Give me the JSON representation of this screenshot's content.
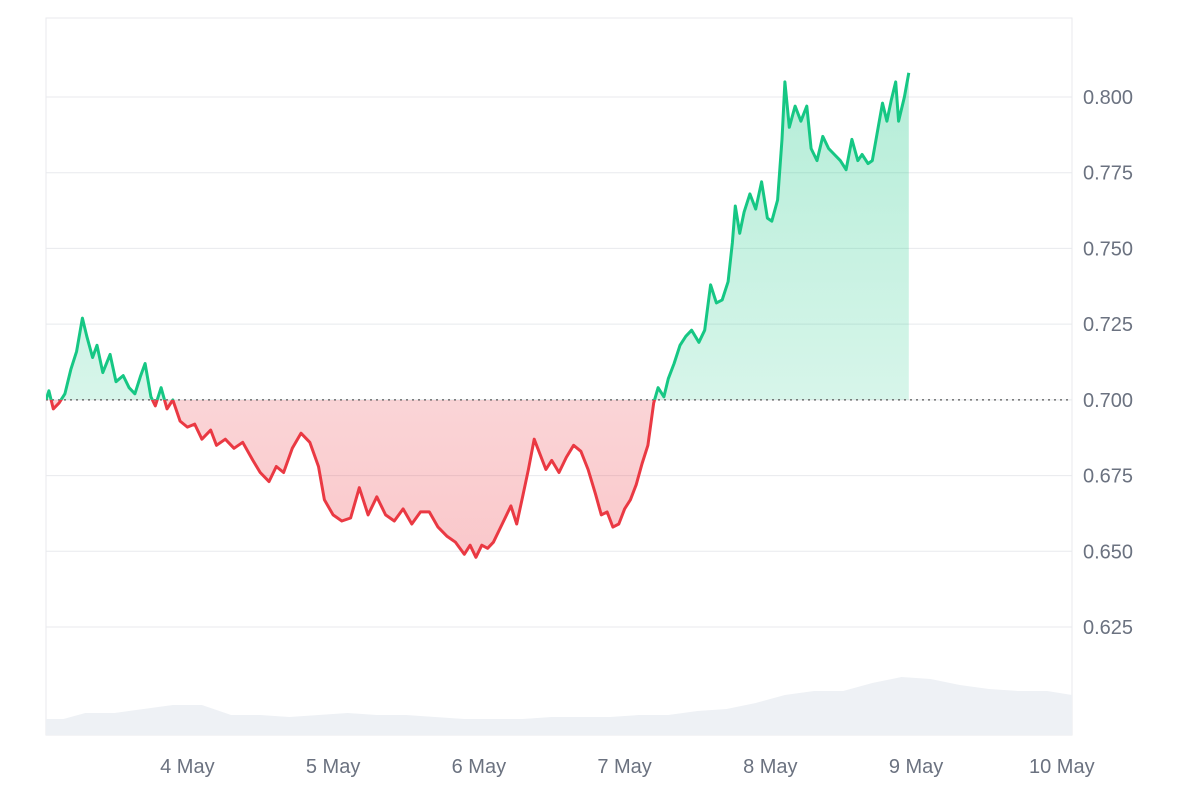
{
  "chart_data": {
    "type": "area",
    "title": "",
    "xlabel": "",
    "ylabel": "",
    "baseline": 0.7,
    "ylim": [
      0.6,
      0.825
    ],
    "y_ticks": [
      "0.800",
      "0.775",
      "0.750",
      "0.725",
      "0.700",
      "0.675",
      "0.650",
      "0.625"
    ],
    "x_ticks": [
      "4 May",
      "5 May",
      "6 May",
      "7 May",
      "8 May",
      "9 May",
      "10 May"
    ],
    "x_range_days": [
      3.53,
      10.57
    ],
    "colors": {
      "up": "#16c784",
      "down": "#ea3943",
      "volume": "#eef1f5",
      "grid": "#e8eaed",
      "text": "#6b7280"
    },
    "price": [
      [
        3.53,
        0.7
      ],
      [
        3.55,
        0.703
      ],
      [
        3.58,
        0.697
      ],
      [
        3.62,
        0.699
      ],
      [
        3.66,
        0.702
      ],
      [
        3.7,
        0.71
      ],
      [
        3.74,
        0.716
      ],
      [
        3.78,
        0.727
      ],
      [
        3.81,
        0.721
      ],
      [
        3.85,
        0.714
      ],
      [
        3.88,
        0.718
      ],
      [
        3.92,
        0.709
      ],
      [
        3.97,
        0.715
      ],
      [
        4.01,
        0.706
      ],
      [
        4.06,
        0.708
      ],
      [
        4.1,
        0.704
      ],
      [
        4.14,
        0.702
      ],
      [
        4.18,
        0.708
      ],
      [
        4.21,
        0.712
      ],
      [
        4.25,
        0.701
      ],
      [
        4.28,
        0.698
      ],
      [
        4.32,
        0.704
      ],
      [
        4.36,
        0.697
      ],
      [
        4.4,
        0.7
      ],
      [
        4.45,
        0.693
      ],
      [
        4.5,
        0.691
      ],
      [
        4.55,
        0.692
      ],
      [
        4.6,
        0.687
      ],
      [
        4.66,
        0.69
      ],
      [
        4.7,
        0.685
      ],
      [
        4.76,
        0.687
      ],
      [
        4.82,
        0.684
      ],
      [
        4.88,
        0.686
      ],
      [
        4.95,
        0.68
      ],
      [
        5.0,
        0.676
      ],
      [
        5.06,
        0.673
      ],
      [
        5.11,
        0.678
      ],
      [
        5.16,
        0.676
      ],
      [
        5.22,
        0.684
      ],
      [
        5.28,
        0.689
      ],
      [
        5.34,
        0.686
      ],
      [
        5.4,
        0.678
      ],
      [
        5.44,
        0.667
      ],
      [
        5.5,
        0.662
      ],
      [
        5.56,
        0.66
      ],
      [
        5.62,
        0.661
      ],
      [
        5.68,
        0.671
      ],
      [
        5.74,
        0.662
      ],
      [
        5.8,
        0.668
      ],
      [
        5.86,
        0.662
      ],
      [
        5.92,
        0.66
      ],
      [
        5.98,
        0.664
      ],
      [
        6.04,
        0.659
      ],
      [
        6.1,
        0.663
      ],
      [
        6.16,
        0.663
      ],
      [
        6.22,
        0.658
      ],
      [
        6.28,
        0.655
      ],
      [
        6.34,
        0.653
      ],
      [
        6.4,
        0.649
      ],
      [
        6.44,
        0.652
      ],
      [
        6.48,
        0.648
      ],
      [
        6.52,
        0.652
      ],
      [
        6.56,
        0.651
      ],
      [
        6.6,
        0.653
      ],
      [
        6.66,
        0.659
      ],
      [
        6.72,
        0.665
      ],
      [
        6.76,
        0.659
      ],
      [
        6.8,
        0.668
      ],
      [
        6.84,
        0.677
      ],
      [
        6.88,
        0.687
      ],
      [
        6.92,
        0.682
      ],
      [
        6.96,
        0.677
      ],
      [
        7.0,
        0.68
      ],
      [
        7.05,
        0.676
      ],
      [
        7.1,
        0.681
      ],
      [
        7.15,
        0.685
      ],
      [
        7.2,
        0.683
      ],
      [
        7.25,
        0.677
      ],
      [
        7.3,
        0.669
      ],
      [
        7.34,
        0.662
      ],
      [
        7.38,
        0.663
      ],
      [
        7.42,
        0.658
      ],
      [
        7.46,
        0.659
      ],
      [
        7.5,
        0.664
      ],
      [
        7.54,
        0.667
      ],
      [
        7.58,
        0.672
      ],
      [
        7.62,
        0.679
      ],
      [
        7.66,
        0.685
      ],
      [
        7.7,
        0.699
      ],
      [
        7.73,
        0.704
      ],
      [
        7.77,
        0.701
      ],
      [
        7.8,
        0.707
      ],
      [
        7.84,
        0.712
      ],
      [
        7.88,
        0.718
      ],
      [
        7.92,
        0.721
      ],
      [
        7.96,
        0.723
      ],
      [
        8.01,
        0.719
      ],
      [
        8.05,
        0.723
      ],
      [
        8.09,
        0.738
      ],
      [
        8.13,
        0.732
      ],
      [
        8.17,
        0.733
      ],
      [
        8.21,
        0.739
      ],
      [
        8.24,
        0.752
      ],
      [
        8.26,
        0.764
      ],
      [
        8.29,
        0.755
      ],
      [
        8.32,
        0.762
      ],
      [
        8.36,
        0.768
      ],
      [
        8.4,
        0.763
      ],
      [
        8.44,
        0.772
      ],
      [
        8.48,
        0.76
      ],
      [
        8.51,
        0.759
      ],
      [
        8.55,
        0.766
      ],
      [
        8.58,
        0.786
      ],
      [
        8.6,
        0.805
      ],
      [
        8.63,
        0.79
      ],
      [
        8.67,
        0.797
      ],
      [
        8.71,
        0.792
      ],
      [
        8.75,
        0.797
      ],
      [
        8.78,
        0.783
      ],
      [
        8.82,
        0.779
      ],
      [
        8.86,
        0.787
      ],
      [
        8.9,
        0.783
      ],
      [
        8.94,
        0.781
      ],
      [
        8.98,
        0.779
      ],
      [
        9.02,
        0.776
      ],
      [
        9.06,
        0.786
      ],
      [
        9.1,
        0.779
      ],
      [
        9.13,
        0.781
      ],
      [
        9.17,
        0.778
      ],
      [
        9.2,
        0.779
      ],
      [
        9.24,
        0.79
      ],
      [
        9.27,
        0.798
      ],
      [
        9.3,
        0.792
      ],
      [
        9.33,
        0.799
      ],
      [
        9.36,
        0.805
      ],
      [
        9.38,
        0.792
      ],
      [
        9.42,
        0.8
      ],
      [
        9.45,
        0.808
      ]
    ],
    "volume": [
      [
        3.53,
        0.08
      ],
      [
        3.65,
        0.08
      ],
      [
        3.8,
        0.11
      ],
      [
        4.0,
        0.11
      ],
      [
        4.2,
        0.13
      ],
      [
        4.4,
        0.15
      ],
      [
        4.6,
        0.15
      ],
      [
        4.8,
        0.1
      ],
      [
        5.0,
        0.1
      ],
      [
        5.2,
        0.09
      ],
      [
        5.4,
        0.1
      ],
      [
        5.6,
        0.11
      ],
      [
        5.8,
        0.1
      ],
      [
        6.0,
        0.1
      ],
      [
        6.2,
        0.09
      ],
      [
        6.4,
        0.08
      ],
      [
        6.6,
        0.08
      ],
      [
        6.8,
        0.08
      ],
      [
        7.0,
        0.09
      ],
      [
        7.2,
        0.09
      ],
      [
        7.4,
        0.09
      ],
      [
        7.6,
        0.1
      ],
      [
        7.8,
        0.1
      ],
      [
        8.0,
        0.12
      ],
      [
        8.2,
        0.13
      ],
      [
        8.4,
        0.16
      ],
      [
        8.6,
        0.2
      ],
      [
        8.8,
        0.22
      ],
      [
        9.0,
        0.22
      ],
      [
        9.2,
        0.26
      ],
      [
        9.4,
        0.29
      ],
      [
        9.6,
        0.28
      ],
      [
        9.8,
        0.25
      ],
      [
        10.0,
        0.23
      ],
      [
        10.2,
        0.22
      ],
      [
        10.4,
        0.22
      ],
      [
        10.57,
        0.2
      ]
    ]
  }
}
